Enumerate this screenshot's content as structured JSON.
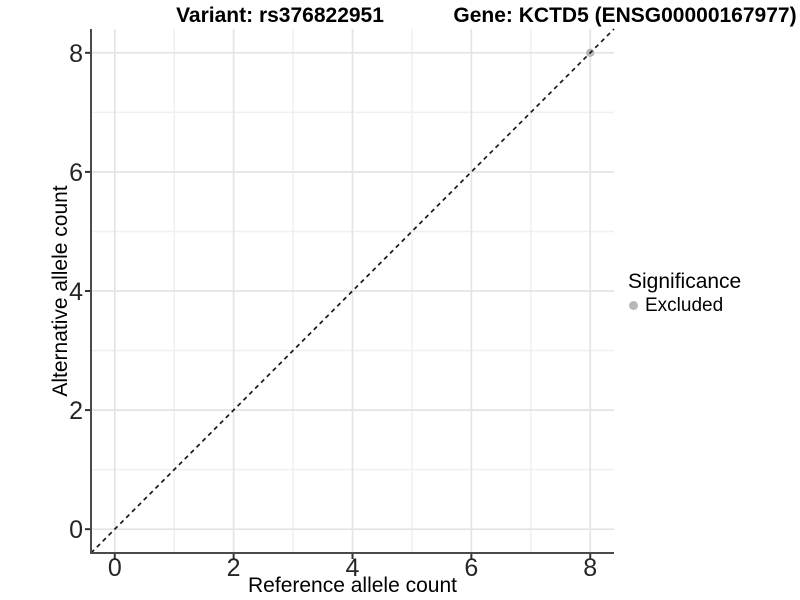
{
  "figure": {
    "background": "#ffffff",
    "title_left": "Variant: rs376822951",
    "title_right": "Gene: KCTD5 (ENSG00000167977)"
  },
  "legend": {
    "title": "Significance",
    "items": [
      {
        "label": "Excluded",
        "color": "#b8b8b8",
        "marker": "circle"
      }
    ]
  },
  "chart_data": {
    "type": "scatter",
    "title": "Variant: rs376822951 | Gene: KCTD5 (ENSG00000167977)",
    "xlabel": "Reference allele count",
    "ylabel": "Alternative allele count",
    "xlim": [
      -0.4,
      8.4
    ],
    "ylim": [
      -0.4,
      8.4
    ],
    "x_major_ticks": [
      0,
      2,
      4,
      6,
      8
    ],
    "y_major_ticks": [
      0,
      2,
      4,
      6,
      8
    ],
    "x_minor_gridlines": [
      1,
      3,
      5,
      7
    ],
    "y_minor_gridlines": [
      1,
      3,
      5,
      7
    ],
    "grid": "major+minor",
    "legend_position": "right",
    "series": [
      {
        "name": "Excluded",
        "color": "#b8b8b8",
        "marker": "circle",
        "points": [
          [
            8,
            8
          ]
        ]
      }
    ],
    "reference_line": {
      "shape": "y=x",
      "style": "dashed",
      "color": "#1a1a1a",
      "from": [
        -0.4,
        -0.4
      ],
      "to": [
        8.4,
        8.4
      ]
    }
  },
  "style": {
    "axis_line_color": "#4a4a4a",
    "tick_mark_color": "#333333",
    "tick_label_color": "#262626",
    "major_grid_color": "#e4e4e4",
    "minor_grid_color": "#f0f0f0"
  }
}
